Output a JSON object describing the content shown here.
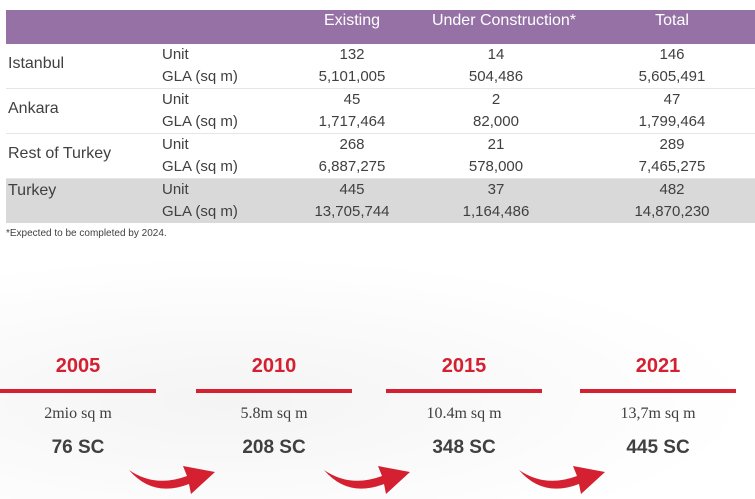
{
  "table": {
    "headers": [
      "Existing",
      "Under Construction*",
      "Total"
    ],
    "rows": [
      {
        "region": "Istanbul",
        "unit_label": "Unit",
        "gla_label": "GLA (sq m)",
        "unit": [
          "132",
          "14",
          "146"
        ],
        "gla": [
          "5,101,005",
          "504,486",
          "5,605,491"
        ]
      },
      {
        "region": "Ankara",
        "unit_label": "Unit",
        "gla_label": "GLA (sq m)",
        "unit": [
          "45",
          "2",
          "47"
        ],
        "gla": [
          "1,717,464",
          "82,000",
          "1,799,464"
        ]
      },
      {
        "region": "Rest of Turkey",
        "unit_label": "Unit",
        "gla_label": "GLA (sq m)",
        "unit": [
          "268",
          "21",
          "289"
        ],
        "gla": [
          "6,887,275",
          "578,000",
          "7,465,275"
        ]
      },
      {
        "region": "Turkey",
        "unit_label": "Unit",
        "gla_label": "GLA (sq m)",
        "unit": [
          "445",
          "37",
          "482"
        ],
        "gla": [
          "13,705,744",
          "1,164,486",
          "14,870,230"
        ]
      }
    ],
    "footnote": "*Expected to be completed by 2024."
  },
  "timeline": [
    {
      "year": "2005",
      "area": "2mio sq m",
      "sc": "76 SC"
    },
    {
      "year": "2010",
      "area": "5.8m sq m",
      "sc": "208 SC"
    },
    {
      "year": "2015",
      "area": "10.4m sq m",
      "sc": "348 SC"
    },
    {
      "year": "2021",
      "area": "13,7m sq m",
      "sc": "445 SC"
    }
  ],
  "colors": {
    "header_bg": "#9671a5",
    "accent_red": "#d42030",
    "total_row_bg": "#d9d9d9"
  },
  "icons": [
    "curved-arrow-icon"
  ]
}
